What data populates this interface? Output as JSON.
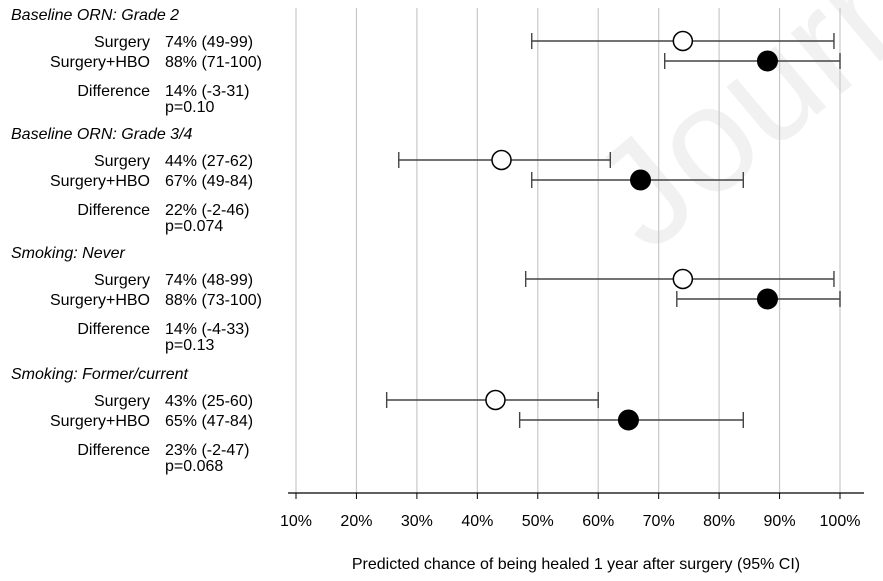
{
  "watermark": "Journal Pre-proof",
  "chart_data": {
    "type": "forest",
    "xlabel": "Predicted chance of being healed 1 year after surgery (95% CI)",
    "xlim": [
      10,
      100
    ],
    "xticks": [
      10,
      20,
      30,
      40,
      50,
      60,
      70,
      80,
      90,
      100
    ],
    "xtick_labels": [
      "10%",
      "20%",
      "30%",
      "40%",
      "50%",
      "60%",
      "70%",
      "80%",
      "90%",
      "100%"
    ],
    "grid": true,
    "markers": {
      "surgery": "open-circle",
      "surgery_hbo": "filled-circle"
    },
    "groups": [
      {
        "title": "Baseline ORN: Grade 2",
        "rows": [
          {
            "label": "Surgery",
            "text": "74% (49-99)",
            "estimate": 74,
            "lower": 49,
            "upper": 99,
            "marker": "open"
          },
          {
            "label": "Surgery+HBO",
            "text": "88% (71-100)",
            "estimate": 88,
            "lower": 71,
            "upper": 100,
            "marker": "filled"
          }
        ],
        "difference_label": "Difference",
        "difference": "14% (-3-31)",
        "p": "p=0.10"
      },
      {
        "title": "Baseline ORN: Grade 3/4",
        "rows": [
          {
            "label": "Surgery",
            "text": "44% (27-62)",
            "estimate": 44,
            "lower": 27,
            "upper": 62,
            "marker": "open"
          },
          {
            "label": "Surgery+HBO",
            "text": "67% (49-84)",
            "estimate": 67,
            "lower": 49,
            "upper": 84,
            "marker": "filled"
          }
        ],
        "difference_label": "Difference",
        "difference": "22% (-2-46)",
        "p": "p=0.074"
      },
      {
        "title": "Smoking: Never",
        "rows": [
          {
            "label": "Surgery",
            "text": "74% (48-99)",
            "estimate": 74,
            "lower": 48,
            "upper": 99,
            "marker": "open"
          },
          {
            "label": "Surgery+HBO",
            "text": "88% (73-100)",
            "estimate": 88,
            "lower": 73,
            "upper": 100,
            "marker": "filled"
          }
        ],
        "difference_label": "Difference",
        "difference": "14% (-4-33)",
        "p": "p=0.13"
      },
      {
        "title": "Smoking: Former/current",
        "rows": [
          {
            "label": "Surgery",
            "text": "43% (25-60)",
            "estimate": 43,
            "lower": 25,
            "upper": 60,
            "marker": "open"
          },
          {
            "label": "Surgery+HBO",
            "text": "65% (47-84)",
            "estimate": 65,
            "lower": 47,
            "upper": 84,
            "marker": "filled"
          }
        ],
        "difference_label": "Difference",
        "difference": "23% (-2-47)",
        "p": "p=0.068"
      }
    ]
  }
}
